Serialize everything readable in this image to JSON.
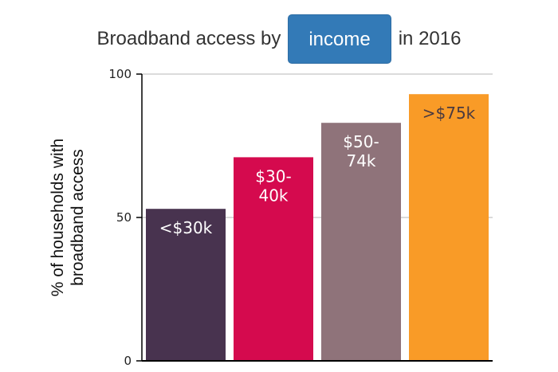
{
  "header": {
    "title_prefix": "Broadband access by",
    "dropdown_label": "income",
    "title_suffix": "in 2016"
  },
  "colors": {
    "dropdown_bg": "#337ab7",
    "bar_colors": [
      "#48334f",
      "#d50a4e",
      "#8f737a",
      "#f99b27"
    ],
    "bar_label_colors": [
      "#ffffff",
      "#ffffff",
      "#ffffff",
      "#4a3a40"
    ]
  },
  "chart_data": {
    "type": "bar",
    "categories": [
      "<$30k",
      "$30-40k",
      "$50-74k",
      ">$75k"
    ],
    "bar_labels": [
      [
        "<$30k"
      ],
      [
        "$30-",
        "40k"
      ],
      [
        "$50-",
        "74k"
      ],
      [
        ">$75k"
      ]
    ],
    "values": [
      53,
      71,
      83,
      93
    ],
    "ylabel_lines": [
      "% of households with",
      "broadband access"
    ],
    "yticks": [
      0,
      50,
      100
    ],
    "ylim": [
      0,
      100
    ],
    "grid": true
  }
}
